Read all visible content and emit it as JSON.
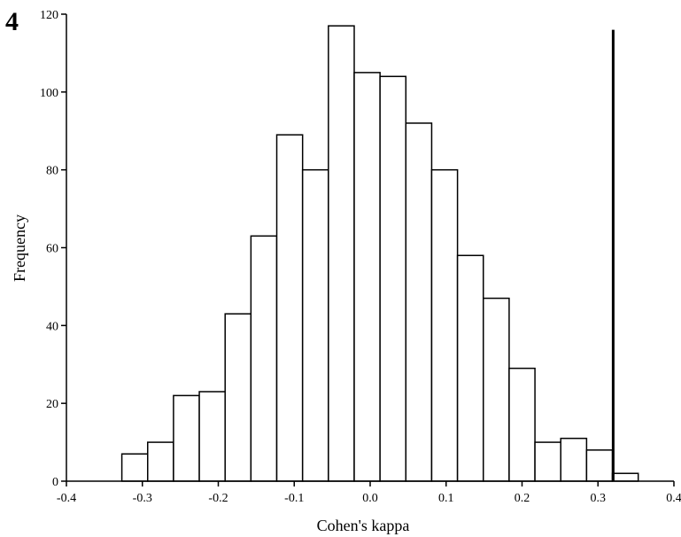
{
  "panel_label": "4",
  "chart_data": {
    "type": "bar",
    "title": "",
    "xlabel": "Cohen's kappa",
    "ylabel": "Frequency",
    "xlim": [
      -0.4,
      0.4
    ],
    "ylim": [
      0,
      120
    ],
    "x_ticks": [
      "-0.4",
      "-0.3",
      "-0.2",
      "-0.1",
      "0.0",
      "0.1",
      "0.2",
      "0.3",
      "0.4"
    ],
    "y_ticks": [
      "0",
      "20",
      "40",
      "60",
      "80",
      "100",
      "120"
    ],
    "bin_width": 0.034,
    "bin_starts": [
      -0.327,
      -0.293,
      -0.259,
      -0.225,
      -0.191,
      -0.157,
      -0.123,
      -0.089,
      -0.055,
      -0.021,
      0.013,
      0.047,
      0.081,
      0.115,
      0.149,
      0.183,
      0.217,
      0.251,
      0.285,
      0.319
    ],
    "values": [
      7,
      10,
      22,
      23,
      43,
      63,
      89,
      80,
      117,
      105,
      104,
      92,
      80,
      58,
      47,
      29,
      10,
      11,
      8,
      2
    ],
    "reference_line": {
      "x": 0.32,
      "y_top": 116
    },
    "grid": false,
    "legend": "none",
    "bar_fill": "#ffffff",
    "bar_stroke": "#000000"
  }
}
